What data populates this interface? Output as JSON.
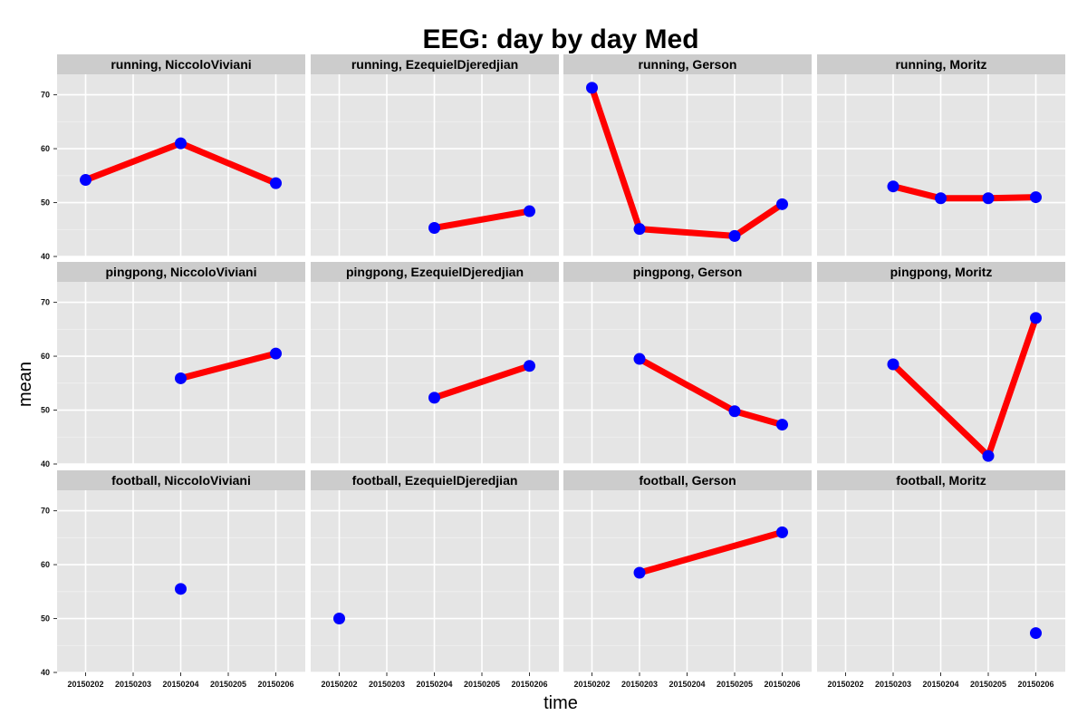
{
  "chart_data": {
    "type": "line",
    "title": "EEG: day by day Med",
    "xlabel": "time",
    "ylabel": "mean",
    "x_categories": [
      "20150202",
      "20150203",
      "20150204",
      "20150205",
      "20150206"
    ],
    "y_ticks": [
      40,
      50,
      60,
      70
    ],
    "ylim": [
      40,
      73.8
    ],
    "grid": true,
    "legend": "none",
    "colors": {
      "line": "#ff0000",
      "point": "#0000ff",
      "panel_bg": "#e5e5e5",
      "strip_bg": "#cccccc",
      "grid": "#ffffff"
    },
    "rows": [
      "running",
      "pingpong",
      "football"
    ],
    "cols": [
      "NiccoloViviani",
      "EzequielDjeredjian",
      "Gerson",
      "Moritz"
    ],
    "panels": [
      {
        "label": "running, NiccoloViviani",
        "points": [
          {
            "x": "20150202",
            "y": 54.2
          },
          {
            "x": "20150204",
            "y": 61.0
          },
          {
            "x": "20150206",
            "y": 53.6
          }
        ]
      },
      {
        "label": "running, EzequielDjeredjian",
        "points": [
          {
            "x": "20150204",
            "y": 45.3
          },
          {
            "x": "20150206",
            "y": 48.4
          }
        ]
      },
      {
        "label": "running, Gerson",
        "points": [
          {
            "x": "20150202",
            "y": 71.3
          },
          {
            "x": "20150203",
            "y": 45.1
          },
          {
            "x": "20150205",
            "y": 43.8
          },
          {
            "x": "20150206",
            "y": 49.7
          }
        ]
      },
      {
        "label": "running, Moritz",
        "points": [
          {
            "x": "20150203",
            "y": 53.0
          },
          {
            "x": "20150204",
            "y": 50.8
          },
          {
            "x": "20150205",
            "y": 50.8
          },
          {
            "x": "20150206",
            "y": 51.0
          }
        ]
      },
      {
        "label": "pingpong, NiccoloViviani",
        "points": [
          {
            "x": "20150204",
            "y": 55.9
          },
          {
            "x": "20150206",
            "y": 60.5
          }
        ]
      },
      {
        "label": "pingpong, EzequielDjeredjian",
        "points": [
          {
            "x": "20150204",
            "y": 52.3
          },
          {
            "x": "20150206",
            "y": 58.2
          }
        ]
      },
      {
        "label": "pingpong, Gerson",
        "points": [
          {
            "x": "20150203",
            "y": 59.5
          },
          {
            "x": "20150205",
            "y": 49.8
          },
          {
            "x": "20150206",
            "y": 47.3
          }
        ]
      },
      {
        "label": "pingpong, Moritz",
        "points": [
          {
            "x": "20150203",
            "y": 58.5
          },
          {
            "x": "20150205",
            "y": 41.5
          },
          {
            "x": "20150206",
            "y": 67.1
          }
        ]
      },
      {
        "label": "football, NiccoloViviani",
        "points": [
          {
            "x": "20150204",
            "y": 55.5
          }
        ]
      },
      {
        "label": "football, EzequielDjeredjian",
        "points": [
          {
            "x": "20150202",
            "y": 50.0
          }
        ]
      },
      {
        "label": "football, Gerson",
        "points": [
          {
            "x": "20150203",
            "y": 58.5
          },
          {
            "x": "20150206",
            "y": 66.0
          }
        ]
      },
      {
        "label": "football, Moritz",
        "points": [
          {
            "x": "20150206",
            "y": 47.3
          }
        ]
      }
    ]
  }
}
